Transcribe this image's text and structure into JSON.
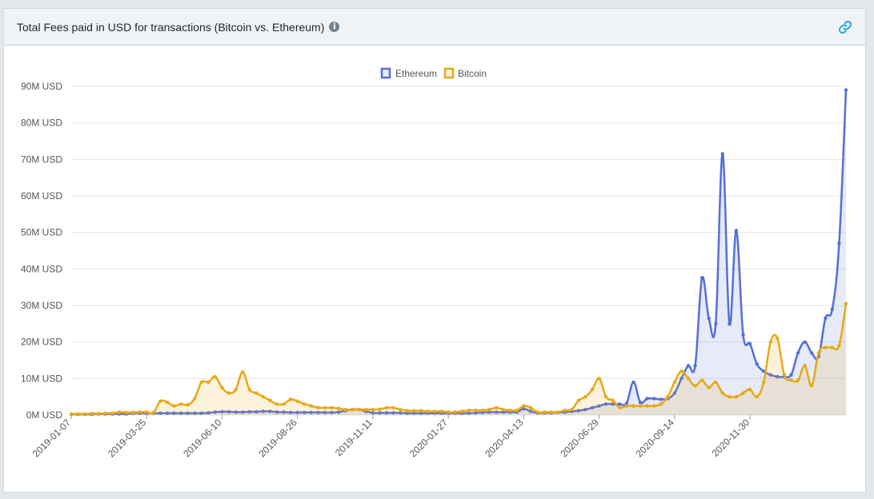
{
  "header": {
    "title": "Total Fees paid in USD for transactions (Bitcoin vs. Ethereum)",
    "info_icon": "info-icon",
    "link_icon": "link-icon"
  },
  "colors": {
    "ethereum": "#5470d6",
    "bitcoin": "#e8a817",
    "ethereum_fill": "rgba(84,112,214,0.15)",
    "bitcoin_fill": "rgba(232,168,23,0.15)",
    "grid": "#e6e6e6"
  },
  "chart_data": {
    "type": "area",
    "title": "Total Fees paid in USD for transactions (Bitcoin vs. Ethereum)",
    "ylim": [
      0,
      90
    ],
    "y_ticks": [
      "0M USD",
      "10M USD",
      "20M USD",
      "30M USD",
      "40M USD",
      "50M USD",
      "60M USD",
      "70M USD",
      "80M USD",
      "90M USD"
    ],
    "x_tick_labels": [
      "2019-01-07",
      "2019-03-25",
      "2019-06-10",
      "2019-08-26",
      "2019-11-11",
      "2020-01-27",
      "2020-04-13",
      "2020-06-29",
      "2020-09-14",
      "2020-11-30"
    ],
    "x_tick_week_index": [
      0,
      11,
      22,
      33,
      44,
      55,
      66,
      77,
      88,
      99
    ],
    "legend": [
      "Ethereum",
      "Bitcoin"
    ],
    "legend_position": "top-center",
    "grid": true,
    "series": [
      {
        "name": "Ethereum",
        "values": [
          0.2,
          0.2,
          0.2,
          0.2,
          0.3,
          0.3,
          0.3,
          0.3,
          0.3,
          0.5,
          0.5,
          0.5,
          0.5,
          0.5,
          0.5,
          0.5,
          0.5,
          0.5,
          0.5,
          0.5,
          0.6,
          0.8,
          0.9,
          0.9,
          0.8,
          0.8,
          0.9,
          0.9,
          1.0,
          1.0,
          0.8,
          0.8,
          0.7,
          0.7,
          0.7,
          0.7,
          0.7,
          0.7,
          0.7,
          0.8,
          1.2,
          1.5,
          1.5,
          1.0,
          0.6,
          0.6,
          0.6,
          0.6,
          0.6,
          0.5,
          0.5,
          0.5,
          0.5,
          0.5,
          0.5,
          0.5,
          0.5,
          0.5,
          0.5,
          0.6,
          0.7,
          0.8,
          0.8,
          0.8,
          0.8,
          0.8,
          1.7,
          1.0,
          0.6,
          0.6,
          0.6,
          0.7,
          0.8,
          1.0,
          1.2,
          1.5,
          2.0,
          2.5,
          3.0,
          3.0,
          3.0,
          3.2,
          9.0,
          3.5,
          4.5,
          4.5,
          4.3,
          4.5,
          6.0,
          10.0,
          13.5,
          13.5,
          37.5,
          26.5,
          25.0,
          71.5,
          25.0,
          50.5,
          22.0,
          19.5,
          14.0,
          12.0,
          11.0,
          10.5,
          10.5,
          11.0,
          17.0,
          20.0,
          17.0,
          16.0,
          26.5,
          29.0,
          47.0,
          89.0
        ]
      },
      {
        "name": "Bitcoin",
        "values": [
          0.3,
          0.3,
          0.3,
          0.4,
          0.4,
          0.5,
          0.5,
          0.8,
          0.7,
          0.7,
          0.8,
          0.8,
          0.7,
          3.8,
          3.5,
          2.5,
          3.0,
          2.8,
          4.5,
          9.0,
          9.0,
          10.5,
          7.5,
          6.0,
          7.0,
          11.8,
          7.0,
          6.0,
          5.0,
          4.0,
          3.0,
          3.0,
          4.3,
          3.8,
          3.0,
          2.5,
          2.0,
          2.0,
          2.0,
          1.8,
          1.5,
          1.5,
          1.5,
          1.5,
          1.5,
          1.6,
          2.0,
          2.0,
          1.5,
          1.2,
          1.2,
          1.2,
          1.0,
          1.0,
          1.0,
          0.8,
          0.8,
          1.0,
          1.3,
          1.3,
          1.3,
          1.5,
          2.0,
          1.5,
          1.3,
          1.3,
          2.5,
          2.0,
          0.8,
          0.8,
          0.8,
          0.8,
          1.3,
          1.5,
          4.0,
          5.0,
          7.0,
          10.0,
          5.0,
          4.0,
          2.0,
          2.5,
          2.5,
          2.5,
          2.5,
          2.5,
          3.0,
          5.0,
          9.0,
          12.0,
          10.0,
          8.0,
          9.5,
          7.5,
          9.0,
          6.0,
          5.0,
          5.0,
          6.0,
          7.0,
          5.0,
          9.0,
          20.0,
          21.0,
          11.0,
          9.5,
          9.5,
          13.5,
          8.0,
          17.0,
          18.5,
          18.5,
          19.0,
          30.5
        ]
      }
    ]
  }
}
